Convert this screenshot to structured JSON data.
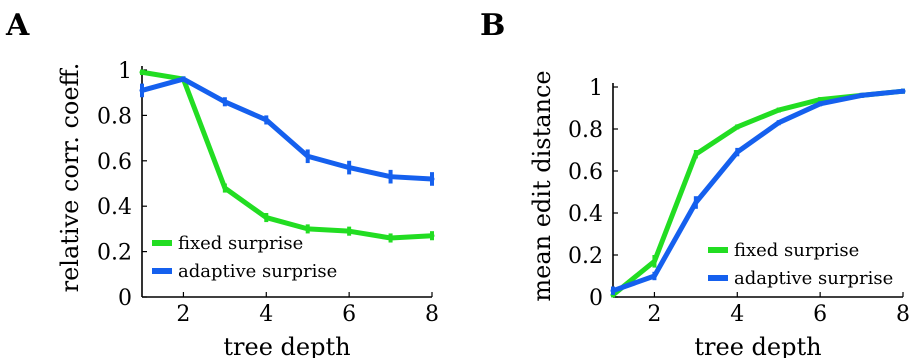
{
  "chart_data": [
    {
      "type": "line",
      "panel": "A",
      "xlabel": "tree depth",
      "ylabel": "relative corr. coeff.",
      "x": [
        1,
        2,
        3,
        4,
        5,
        6,
        7,
        8
      ],
      "xlim": [
        1,
        8
      ],
      "ylim": [
        0,
        1
      ],
      "xticks": [
        2,
        4,
        6,
        8
      ],
      "yticks": [
        0,
        0.2,
        0.4,
        0.6,
        0.8,
        1
      ],
      "ytick_labels": [
        "0",
        "0.2",
        "0.4",
        "0.6",
        "0.8",
        "1"
      ],
      "series": [
        {
          "name": "fixed surprise",
          "color": "#22dd22",
          "values": [
            0.99,
            0.96,
            0.48,
            0.35,
            0.3,
            0.29,
            0.26,
            0.27
          ],
          "err": [
            0.01,
            0.01,
            0.02,
            0.02,
            0.02,
            0.02,
            0.02,
            0.02
          ]
        },
        {
          "name": "adaptive surprise",
          "color": "#1560ee",
          "values": [
            0.91,
            0.96,
            0.86,
            0.78,
            0.62,
            0.57,
            0.53,
            0.52
          ],
          "err": [
            0.03,
            0.01,
            0.02,
            0.02,
            0.03,
            0.03,
            0.03,
            0.03
          ]
        }
      ],
      "legend": "bottom-left"
    },
    {
      "type": "line",
      "panel": "B",
      "xlabel": "tree depth",
      "ylabel": "mean edit distance",
      "x": [
        1,
        2,
        3,
        4,
        5,
        6,
        7,
        8
      ],
      "xlim": [
        1,
        8
      ],
      "ylim": [
        0,
        1
      ],
      "xticks": [
        2,
        4,
        6,
        8
      ],
      "yticks": [
        0,
        0.2,
        0.4,
        0.6,
        0.8,
        1
      ],
      "ytick_labels": [
        "0",
        "0.2",
        "0.4",
        "0.6",
        "0.8",
        "1"
      ],
      "series": [
        {
          "name": "fixed surprise",
          "color": "#22dd22",
          "values": [
            0.01,
            0.17,
            0.68,
            0.81,
            0.89,
            0.94,
            0.96,
            0.98
          ],
          "err": [
            0.01,
            0.03,
            0.02,
            0.01,
            0.01,
            0.01,
            0.01,
            0.01
          ]
        },
        {
          "name": "adaptive surprise",
          "color": "#1560ee",
          "values": [
            0.03,
            0.1,
            0.45,
            0.69,
            0.83,
            0.92,
            0.96,
            0.98
          ],
          "err": [
            0.02,
            0.02,
            0.03,
            0.02,
            0.01,
            0.01,
            0.01,
            0.01
          ]
        }
      ],
      "legend": "bottom-right"
    }
  ]
}
